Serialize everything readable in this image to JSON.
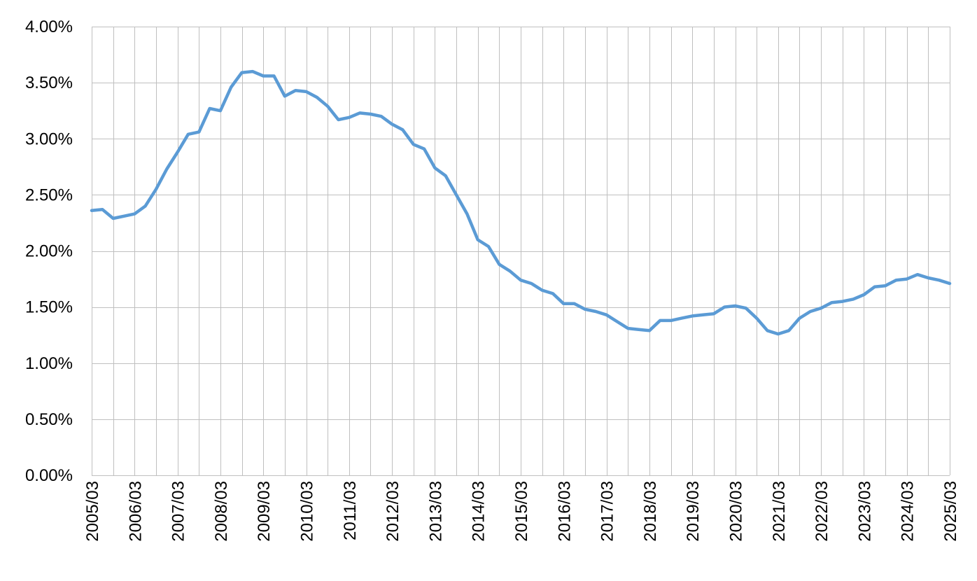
{
  "chart_data": {
    "type": "line",
    "title": "",
    "xlabel": "",
    "ylabel": "",
    "x_range": [
      "2005/03",
      "2025/03"
    ],
    "ylim": [
      0,
      0.04
    ],
    "y_ticks": [
      "0.00%",
      "0.50%",
      "1.00%",
      "1.50%",
      "2.00%",
      "2.50%",
      "3.00%",
      "3.50%",
      "4.00%"
    ],
    "x_ticks": [
      "2005/03",
      "2006/03",
      "2007/03",
      "2008/03",
      "2009/03",
      "2010/03",
      "2011/03",
      "2012/03",
      "2013/03",
      "2014/03",
      "2015/03",
      "2016/03",
      "2017/03",
      "2018/03",
      "2019/03",
      "2020/03",
      "2021/03",
      "2022/03",
      "2023/03",
      "2024/03",
      "2025/03"
    ],
    "grid": true,
    "legend": "none",
    "series": [
      {
        "color": "#5b9bd5",
        "x": [
          "2005/03",
          "2005/06",
          "2005/09",
          "2005/12",
          "2006/03",
          "2006/06",
          "2006/09",
          "2006/12",
          "2007/03",
          "2007/06",
          "2007/09",
          "2007/12",
          "2008/03",
          "2008/06",
          "2008/09",
          "2008/12",
          "2009/03",
          "2009/06",
          "2009/09",
          "2009/12",
          "2010/03",
          "2010/06",
          "2010/09",
          "2010/12",
          "2011/03",
          "2011/06",
          "2011/09",
          "2011/12",
          "2012/03",
          "2012/06",
          "2012/09",
          "2012/12",
          "2013/03",
          "2013/06",
          "2013/09",
          "2013/12",
          "2014/03",
          "2014/06",
          "2014/09",
          "2014/12",
          "2015/03",
          "2015/06",
          "2015/09",
          "2015/12",
          "2016/03",
          "2016/06",
          "2016/09",
          "2016/12",
          "2017/03",
          "2017/06",
          "2017/09",
          "2017/12",
          "2018/03",
          "2018/06",
          "2018/09",
          "2018/12",
          "2019/03",
          "2019/06",
          "2019/09",
          "2019/12",
          "2020/03",
          "2020/06",
          "2020/09",
          "2020/12",
          "2021/03",
          "2021/06",
          "2021/09",
          "2021/12",
          "2022/03",
          "2022/06",
          "2022/09",
          "2022/12",
          "2023/03",
          "2023/06",
          "2023/09",
          "2023/12",
          "2024/03",
          "2024/06",
          "2024/09",
          "2024/12",
          "2025/03"
        ],
        "values": [
          0.0236,
          0.0237,
          0.0229,
          0.0231,
          0.0233,
          0.024,
          0.0255,
          0.0273,
          0.0288,
          0.0304,
          0.0306,
          0.0327,
          0.0325,
          0.0346,
          0.0359,
          0.036,
          0.0356,
          0.0356,
          0.0338,
          0.0343,
          0.0342,
          0.0337,
          0.0329,
          0.0317,
          0.0319,
          0.0323,
          0.0322,
          0.032,
          0.0313,
          0.0308,
          0.0295,
          0.0291,
          0.0274,
          0.0267,
          0.025,
          0.0233,
          0.021,
          0.0204,
          0.0188,
          0.0182,
          0.0174,
          0.0171,
          0.0165,
          0.0162,
          0.0153,
          0.0153,
          0.0148,
          0.0146,
          0.0143,
          0.0137,
          0.0131,
          0.013,
          0.0129,
          0.0138,
          0.0138,
          0.014,
          0.0142,
          0.0143,
          0.0144,
          0.015,
          0.0151,
          0.0149,
          0.014,
          0.0129,
          0.0126,
          0.0129,
          0.014,
          0.0146,
          0.0149,
          0.0154,
          0.0155,
          0.0157,
          0.0161,
          0.0168,
          0.0169,
          0.0174,
          0.0175,
          0.0179,
          0.0176,
          0.0174,
          0.0171
        ]
      }
    ]
  }
}
